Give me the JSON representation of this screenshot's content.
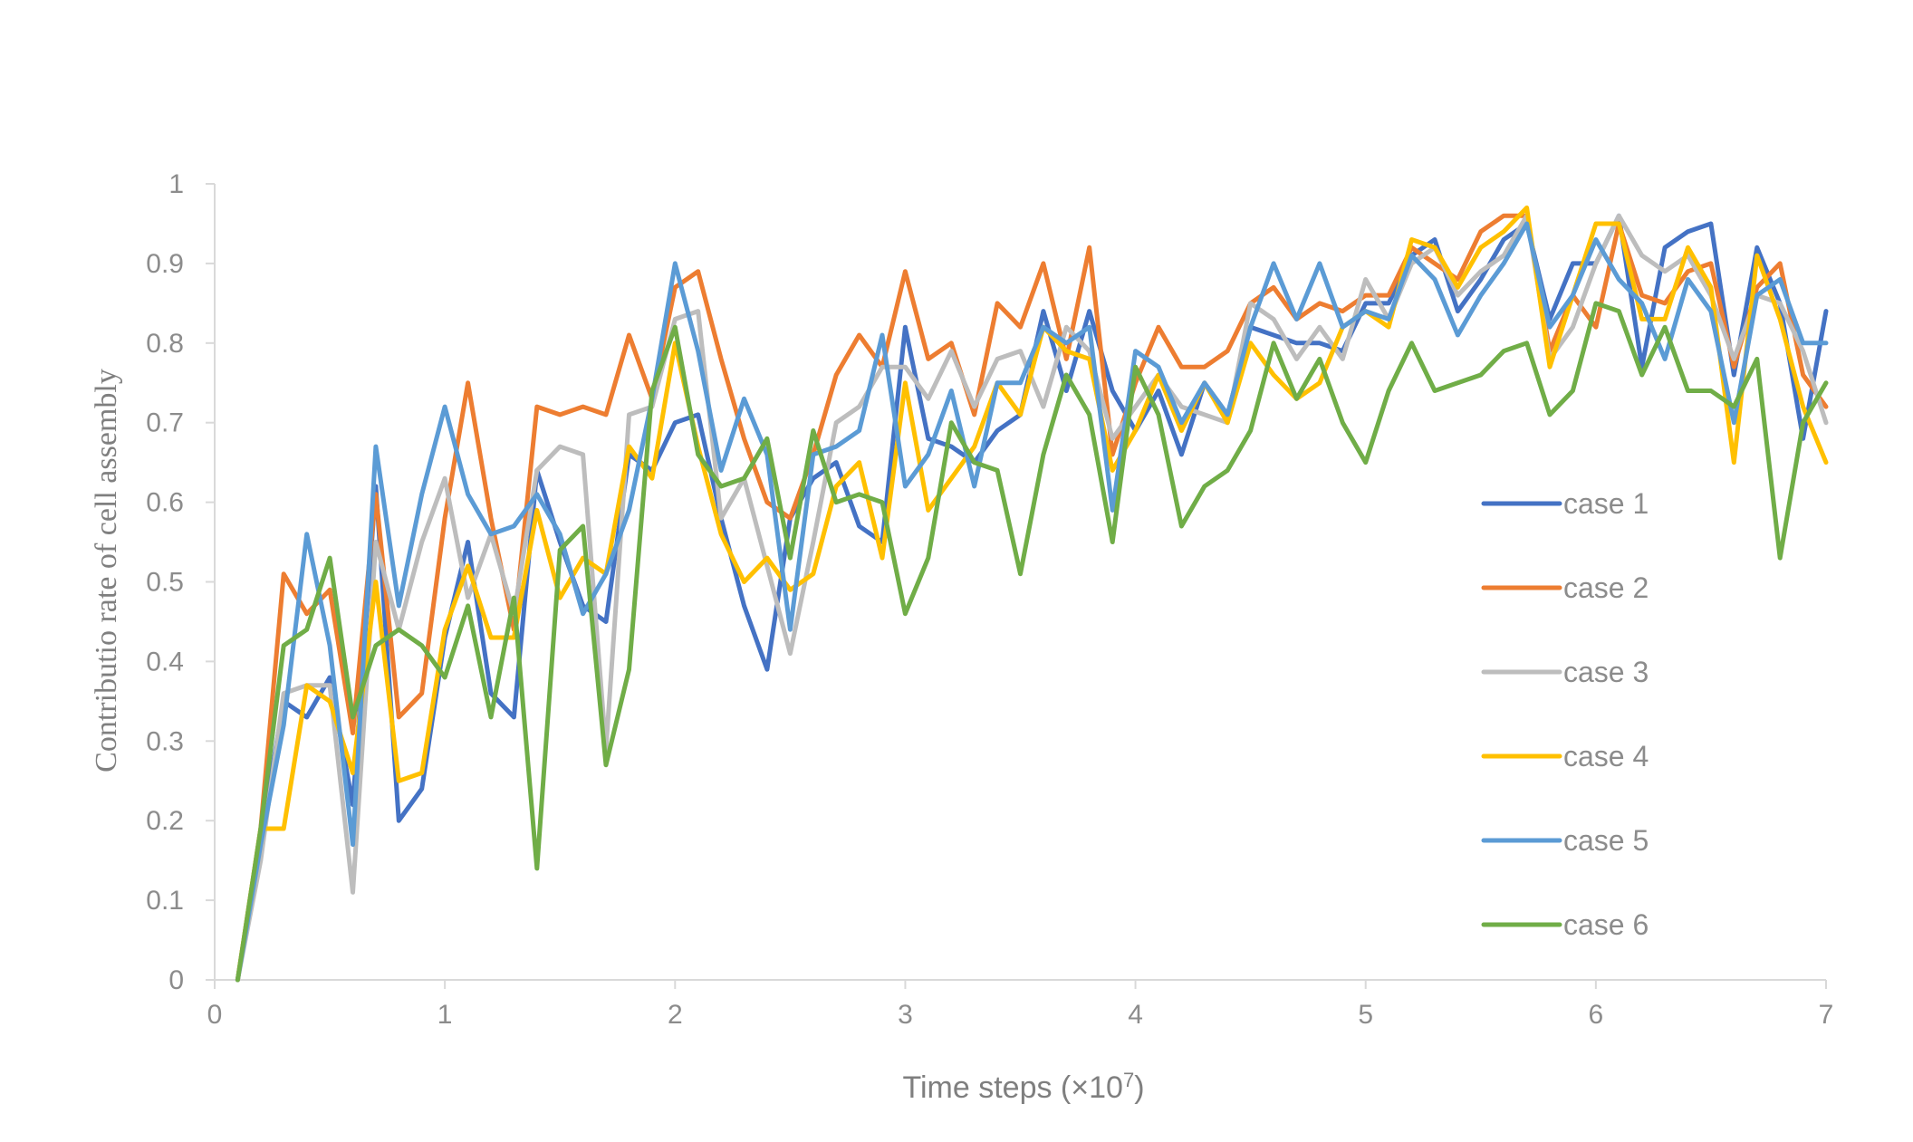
{
  "chart_data": {
    "type": "line",
    "title": "",
    "xlabel": "Time steps (×10",
    "xlabel_exponent": "7",
    "xlabel_close": ")",
    "ylabel": "Contributio rate of cell assembly",
    "xlim": [
      0,
      7
    ],
    "ylim": [
      0,
      1
    ],
    "xticks": [
      "0",
      "1",
      "2",
      "3",
      "4",
      "5",
      "6",
      "7"
    ],
    "yticks": [
      "0",
      "0.1",
      "0.2",
      "0.3",
      "0.4",
      "0.5",
      "0.6",
      "0.7",
      "0.8",
      "0.9",
      "1"
    ],
    "grid": false,
    "legend_position": "right",
    "x": [
      0.1,
      0.2,
      0.3,
      0.4,
      0.5,
      0.6,
      0.7,
      0.8,
      0.9,
      1.0,
      1.1,
      1.2,
      1.3,
      1.4,
      1.5,
      1.6,
      1.7,
      1.8,
      1.9,
      2.0,
      2.1,
      2.2,
      2.3,
      2.4,
      2.5,
      2.6,
      2.7,
      2.8,
      2.9,
      3.0,
      3.1,
      3.2,
      3.3,
      3.4,
      3.5,
      3.6,
      3.7,
      3.8,
      3.9,
      4.0,
      4.1,
      4.2,
      4.3,
      4.4,
      4.5,
      4.6,
      4.7,
      4.8,
      4.9,
      5.0,
      5.1,
      5.2,
      5.3,
      5.4,
      5.5,
      5.6,
      5.7,
      5.8,
      5.9,
      6.0,
      6.1,
      6.2,
      6.3,
      6.4,
      6.5,
      6.6,
      6.7,
      6.8,
      6.9,
      7.0
    ],
    "series": [
      {
        "name": "case 1",
        "color": "#4472c4",
        "values": [
          0,
          0.18,
          0.35,
          0.33,
          0.38,
          0.22,
          0.62,
          0.2,
          0.24,
          0.43,
          0.55,
          0.36,
          0.33,
          0.64,
          0.55,
          0.47,
          0.45,
          0.66,
          0.64,
          0.7,
          0.71,
          0.58,
          0.47,
          0.39,
          0.58,
          0.63,
          0.65,
          0.57,
          0.55,
          0.82,
          0.68,
          0.67,
          0.65,
          0.69,
          0.71,
          0.84,
          0.74,
          0.84,
          0.74,
          0.69,
          0.74,
          0.66,
          0.75,
          0.71,
          0.82,
          0.81,
          0.8,
          0.8,
          0.79,
          0.85,
          0.85,
          0.91,
          0.93,
          0.84,
          0.88,
          0.93,
          0.95,
          0.83,
          0.9,
          0.9,
          0.96,
          0.77,
          0.92,
          0.94,
          0.95,
          0.76,
          0.92,
          0.85,
          0.68,
          0.84
        ]
      },
      {
        "name": "case 2",
        "color": "#ed7d31",
        "values": [
          0,
          0.19,
          0.51,
          0.46,
          0.49,
          0.31,
          0.61,
          0.33,
          0.36,
          0.58,
          0.75,
          0.58,
          0.44,
          0.72,
          0.71,
          0.72,
          0.71,
          0.81,
          0.73,
          0.87,
          0.89,
          0.78,
          0.68,
          0.6,
          0.58,
          0.66,
          0.76,
          0.81,
          0.77,
          0.89,
          0.78,
          0.8,
          0.71,
          0.85,
          0.82,
          0.9,
          0.78,
          0.92,
          0.66,
          0.75,
          0.82,
          0.77,
          0.77,
          0.79,
          0.85,
          0.87,
          0.83,
          0.85,
          0.84,
          0.86,
          0.86,
          0.92,
          0.9,
          0.88,
          0.94,
          0.96,
          0.96,
          0.79,
          0.86,
          0.82,
          0.95,
          0.86,
          0.85,
          0.89,
          0.9,
          0.77,
          0.87,
          0.9,
          0.76,
          0.72
        ]
      },
      {
        "name": "case 3",
        "color": "#bdbdbd",
        "values": [
          0,
          0.15,
          0.36,
          0.37,
          0.37,
          0.11,
          0.55,
          0.44,
          0.55,
          0.63,
          0.48,
          0.56,
          0.46,
          0.64,
          0.67,
          0.66,
          0.29,
          0.71,
          0.72,
          0.83,
          0.84,
          0.58,
          0.63,
          0.52,
          0.41,
          0.55,
          0.7,
          0.72,
          0.77,
          0.77,
          0.73,
          0.79,
          0.72,
          0.78,
          0.79,
          0.72,
          0.82,
          0.79,
          0.68,
          0.72,
          0.76,
          0.72,
          0.71,
          0.7,
          0.85,
          0.83,
          0.78,
          0.82,
          0.78,
          0.88,
          0.83,
          0.9,
          0.92,
          0.86,
          0.89,
          0.91,
          0.96,
          0.78,
          0.82,
          0.9,
          0.96,
          0.91,
          0.89,
          0.91,
          0.86,
          0.78,
          0.86,
          0.85,
          0.79,
          0.7
        ]
      },
      {
        "name": "case 4",
        "color": "#ffc000",
        "values": [
          0,
          0.19,
          0.19,
          0.37,
          0.35,
          0.26,
          0.5,
          0.25,
          0.26,
          0.44,
          0.52,
          0.43,
          0.43,
          0.59,
          0.48,
          0.53,
          0.51,
          0.67,
          0.63,
          0.8,
          0.67,
          0.56,
          0.5,
          0.53,
          0.49,
          0.51,
          0.62,
          0.65,
          0.53,
          0.75,
          0.59,
          0.63,
          0.67,
          0.75,
          0.71,
          0.82,
          0.79,
          0.78,
          0.64,
          0.69,
          0.76,
          0.69,
          0.75,
          0.7,
          0.8,
          0.76,
          0.73,
          0.75,
          0.82,
          0.84,
          0.82,
          0.93,
          0.92,
          0.87,
          0.92,
          0.94,
          0.97,
          0.77,
          0.86,
          0.95,
          0.95,
          0.83,
          0.83,
          0.92,
          0.87,
          0.65,
          0.91,
          0.83,
          0.72,
          0.65
        ]
      },
      {
        "name": "case 5",
        "color": "#5b9bd5",
        "values": [
          0,
          0.17,
          0.32,
          0.56,
          0.42,
          0.17,
          0.67,
          0.47,
          0.61,
          0.72,
          0.61,
          0.56,
          0.57,
          0.61,
          0.56,
          0.46,
          0.51,
          0.59,
          0.73,
          0.9,
          0.79,
          0.64,
          0.73,
          0.66,
          0.44,
          0.66,
          0.67,
          0.69,
          0.81,
          0.62,
          0.66,
          0.74,
          0.62,
          0.75,
          0.75,
          0.82,
          0.8,
          0.82,
          0.59,
          0.79,
          0.77,
          0.7,
          0.75,
          0.71,
          0.82,
          0.9,
          0.83,
          0.9,
          0.82,
          0.84,
          0.83,
          0.91,
          0.88,
          0.81,
          0.86,
          0.9,
          0.95,
          0.82,
          0.86,
          0.93,
          0.88,
          0.85,
          0.78,
          0.88,
          0.84,
          0.7,
          0.86,
          0.88,
          0.8,
          0.8
        ]
      },
      {
        "name": "case 6",
        "color": "#70ad47",
        "values": [
          0,
          0.19,
          0.42,
          0.44,
          0.53,
          0.33,
          0.42,
          0.44,
          0.42,
          0.38,
          0.47,
          0.33,
          0.48,
          0.14,
          0.54,
          0.57,
          0.27,
          0.39,
          0.74,
          0.82,
          0.66,
          0.62,
          0.63,
          0.68,
          0.53,
          0.69,
          0.6,
          0.61,
          0.6,
          0.46,
          0.53,
          0.7,
          0.65,
          0.64,
          0.51,
          0.66,
          0.76,
          0.71,
          0.55,
          0.77,
          0.71,
          0.57,
          0.62,
          0.64,
          0.69,
          0.8,
          0.73,
          0.78,
          0.7,
          0.65,
          0.74,
          0.8,
          0.74,
          0.75,
          0.76,
          0.79,
          0.8,
          0.71,
          0.74,
          0.85,
          0.84,
          0.76,
          0.82,
          0.74,
          0.74,
          0.72,
          0.78,
          0.53,
          0.7,
          0.75
        ]
      }
    ]
  }
}
